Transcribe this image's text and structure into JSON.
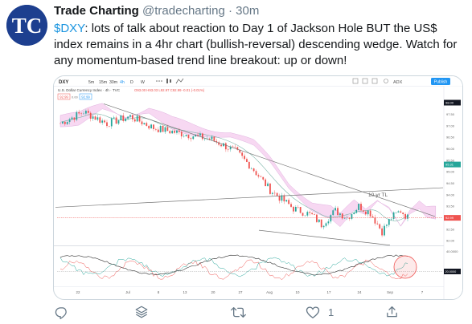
{
  "tweet": {
    "author_name": "Trade Charting",
    "author_handle": "@tradecharting",
    "separator": "·",
    "time": "30m",
    "cashtag": "$DXY",
    "text_body": ": lots of talk about reaction to Day 1 of Jackson Hole BUT the US$ index remains in a 4hr chart (bullish-reversal) descending wedge. Watch for any momentum-based trend line breakout: up or down!",
    "avatar_initials": "TC"
  },
  "chart": {
    "symbol": "DXY",
    "timeframes": [
      "5m",
      "15m",
      "30m",
      "4h",
      "D",
      "W"
    ],
    "toolbar_icons": [
      "ellipsis-icon",
      "chart-type-icon",
      "indicator-icon"
    ],
    "right_labels": [
      "ADX",
      "Publish"
    ],
    "title": "U.S. Dollar Currency Index · 4h · TVC",
    "ohlc": "O93.00 H93.03 L92.97 C92.99 -0.01 (-0.01%)",
    "sell": "92.99",
    "spread": "0.00",
    "buy": "92.99",
    "annotation": "10-yr TL",
    "price_axis": [
      "98.00",
      "97.50",
      "97.00",
      "96.50",
      "96.00",
      "95.50",
      "95.00",
      "94.50",
      "94.00",
      "93.50",
      "93.00",
      "92.50",
      "92.00"
    ],
    "price_tag_top": "98.00",
    "price_tag_mid": "95.31",
    "price_tag_last": "92.99",
    "osc_axis": [
      "40.0000",
      "20.0000"
    ],
    "osc_tag": "20.0000",
    "time_axis": [
      "22",
      "Jul",
      "8",
      "13",
      "20",
      "27",
      "Aug",
      "10",
      "17",
      "24",
      "Sep",
      "7"
    ],
    "colors": {
      "up": "#26a69a",
      "down": "#ef5350",
      "cloud": "#f3c8ec",
      "cloud_line": "#d9a3d8",
      "trendline": "#757575",
      "price_line": "#ef5350",
      "publish": "#2196f3"
    }
  },
  "actions": {
    "reply_icon": "reply-icon",
    "save_icon": "layers-icon",
    "retweet_icon": "retweet-icon",
    "like_icon": "heart-icon",
    "like_count": "1",
    "share_icon": "share-icon"
  }
}
